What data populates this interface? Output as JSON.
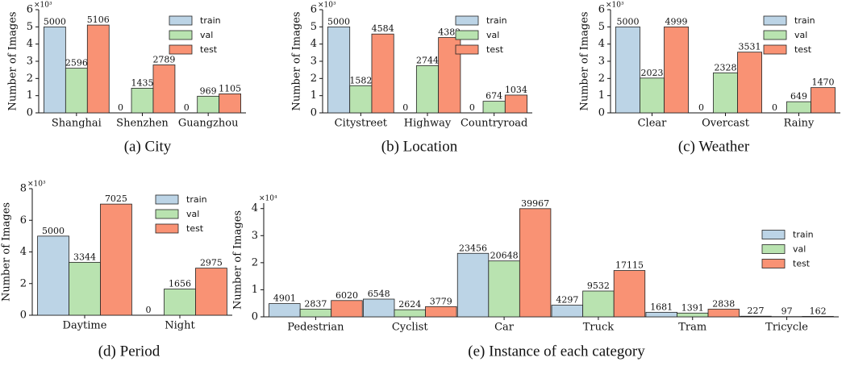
{
  "chart_data": [
    {
      "type": "bar",
      "caption": "(a) City",
      "ylabel": "Number of Images",
      "y_multiplier": "×10³",
      "categories": [
        "Shanghai",
        "Shenzhen",
        "Guangzhou"
      ],
      "series": [
        {
          "name": "train",
          "color": "#bcd4e6",
          "values": [
            5000,
            0,
            0
          ]
        },
        {
          "name": "val",
          "color": "#b9e3b0",
          "values": [
            2596,
            1435,
            969
          ]
        },
        {
          "name": "test",
          "color": "#f99274",
          "values": [
            5106,
            2789,
            1105
          ]
        }
      ],
      "ylim": [
        0,
        6000
      ],
      "yticks": [
        0,
        {
          "value": 1000,
          "label": "1"
        },
        {
          "value": 2000,
          "label": "2"
        },
        {
          "value": 3000,
          "label": "3"
        },
        {
          "value": 4000,
          "label": "4"
        },
        {
          "value": 5000,
          "label": "5"
        },
        {
          "value": 6000,
          "label": "6"
        }
      ],
      "legend": "upper right"
    },
    {
      "type": "bar",
      "caption": "(b) Location",
      "ylabel": "Number of Images",
      "y_multiplier": "×10³",
      "categories": [
        "Citystreet",
        "Highway",
        "Countryroad"
      ],
      "series": [
        {
          "name": "train",
          "color": "#bcd4e6",
          "values": [
            5000,
            0,
            0
          ]
        },
        {
          "name": "val",
          "color": "#b9e3b0",
          "values": [
            1582,
            2744,
            674
          ]
        },
        {
          "name": "test",
          "color": "#f99274",
          "values": [
            4584,
            4382,
            1034
          ]
        }
      ],
      "ylim": [
        0,
        6000
      ],
      "yticks": [
        0,
        {
          "value": 1000,
          "label": "1"
        },
        {
          "value": 2000,
          "label": "2"
        },
        {
          "value": 3000,
          "label": "3"
        },
        {
          "value": 4000,
          "label": "4"
        },
        {
          "value": 5000,
          "label": "5"
        },
        {
          "value": 6000,
          "label": "6"
        }
      ],
      "legend": "upper right"
    },
    {
      "type": "bar",
      "caption": "(c) Weather",
      "ylabel": "Number of Images",
      "y_multiplier": "×10³",
      "categories": [
        "Clear",
        "Overcast",
        "Rainy"
      ],
      "series": [
        {
          "name": "train",
          "color": "#bcd4e6",
          "values": [
            5000,
            0,
            0
          ]
        },
        {
          "name": "val",
          "color": "#b9e3b0",
          "values": [
            2023,
            2328,
            649
          ]
        },
        {
          "name": "test",
          "color": "#f99274",
          "values": [
            4999,
            3531,
            1470
          ]
        }
      ],
      "ylim": [
        0,
        6000
      ],
      "yticks": [
        0,
        {
          "value": 1000,
          "label": "1"
        },
        {
          "value": 2000,
          "label": "2"
        },
        {
          "value": 3000,
          "label": "3"
        },
        {
          "value": 4000,
          "label": "4"
        },
        {
          "value": 5000,
          "label": "5"
        },
        {
          "value": 6000,
          "label": "6"
        }
      ],
      "legend": "upper right"
    },
    {
      "type": "bar",
      "caption": "(d) Period",
      "ylabel": "Number of Images",
      "y_multiplier": "×10³",
      "categories": [
        "Daytime",
        "Night"
      ],
      "series": [
        {
          "name": "train",
          "color": "#bcd4e6",
          "values": [
            5000,
            0
          ]
        },
        {
          "name": "val",
          "color": "#b9e3b0",
          "values": [
            3344,
            1656
          ]
        },
        {
          "name": "test",
          "color": "#f99274",
          "values": [
            7025,
            2975
          ]
        }
      ],
      "ylim": [
        0,
        8000
      ],
      "yticks": [
        0,
        {
          "value": 2000,
          "label": "2"
        },
        {
          "value": 4000,
          "label": "4"
        },
        {
          "value": 6000,
          "label": "6"
        },
        {
          "value": 8000,
          "label": "8"
        }
      ],
      "legend": "upper right"
    },
    {
      "type": "bar",
      "caption": "(e) Instance of each category",
      "ylabel": "Number of Images",
      "y_multiplier": "×10⁴",
      "categories": [
        "Pedestrian",
        "Cyclist",
        "Car",
        "Truck",
        "Tram",
        "Tricycle"
      ],
      "series": [
        {
          "name": "train",
          "color": "#bcd4e6",
          "values": [
            4901,
            6548,
            23456,
            4297,
            1681,
            227
          ]
        },
        {
          "name": "val",
          "color": "#b9e3b0",
          "values": [
            2837,
            2624,
            20648,
            9532,
            1391,
            97
          ]
        },
        {
          "name": "test",
          "color": "#f99274",
          "values": [
            6020,
            3779,
            39967,
            17115,
            2838,
            162
          ]
        }
      ],
      "ylim": [
        0,
        42000
      ],
      "yticks": [
        0,
        {
          "value": 10000,
          "label": "1"
        },
        {
          "value": 20000,
          "label": "2"
        },
        {
          "value": 30000,
          "label": "3"
        },
        {
          "value": 40000,
          "label": "4"
        }
      ],
      "legend": "center right"
    }
  ]
}
